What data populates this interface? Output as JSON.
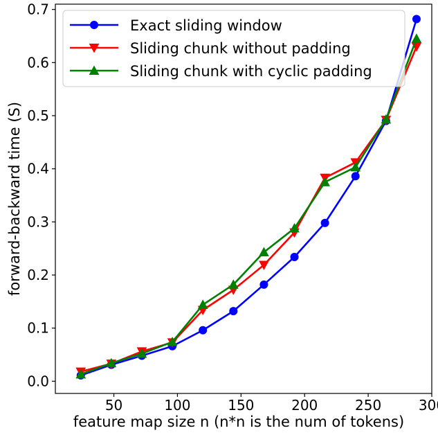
{
  "chart_data": {
    "type": "line",
    "title": "",
    "xlabel": "feature map size n (n*n is the num of tokens)",
    "ylabel": "forward-backward time (S)",
    "xlim": [
      4,
      300
    ],
    "ylim": [
      -0.023,
      0.71
    ],
    "xticks": [
      50,
      100,
      150,
      200,
      250,
      300
    ],
    "yticks": [
      0.0,
      0.1,
      0.2,
      0.3,
      0.4,
      0.5,
      0.6,
      0.7
    ],
    "ytick_labels": [
      "0.0",
      "0.1",
      "0.2",
      "0.3",
      "0.4",
      "0.5",
      "0.6",
      "0.7"
    ],
    "grid": false,
    "legend_position": "top-left",
    "x": [
      24,
      48,
      72,
      96,
      120,
      144,
      168,
      192,
      216,
      240,
      264,
      288
    ],
    "series": [
      {
        "name": "Exact sliding window",
        "color": "#0000ff",
        "marker": "circle",
        "values": [
          0.011,
          0.031,
          0.048,
          0.066,
          0.096,
          0.132,
          0.182,
          0.234,
          0.298,
          0.386,
          0.49,
          0.682
        ]
      },
      {
        "name": "Sliding chunk without padding",
        "color": "#ff0000",
        "marker": "triangle-down",
        "values": [
          0.018,
          0.033,
          0.056,
          0.073,
          0.134,
          0.172,
          0.219,
          0.28,
          0.383,
          0.412,
          0.492,
          0.63
        ]
      },
      {
        "name": "Sliding chunk with cyclic padding",
        "color": "#008000",
        "marker": "triangle-up",
        "values": [
          0.013,
          0.034,
          0.052,
          0.074,
          0.144,
          0.182,
          0.243,
          0.288,
          0.375,
          0.403,
          0.493,
          0.645
        ]
      }
    ]
  }
}
